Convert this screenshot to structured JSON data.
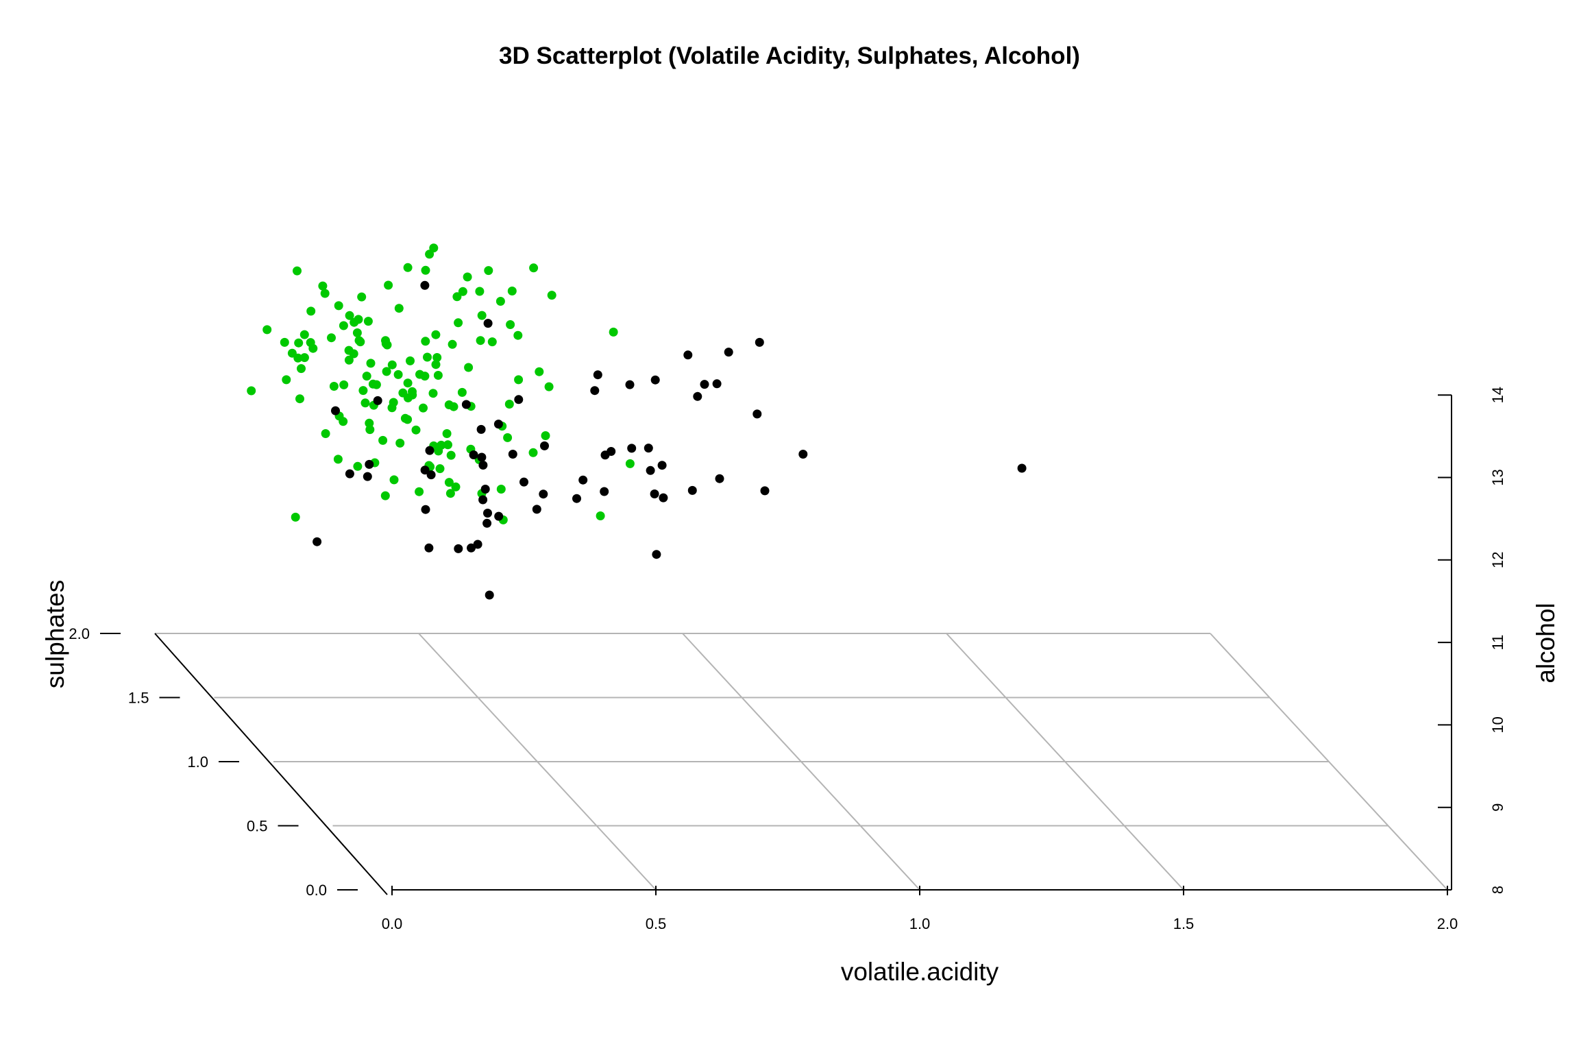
{
  "chart_data": {
    "type": "scatter",
    "title": "3D Scatterplot (Volatile Acidity, Sulphates, Alcohol)",
    "x_axis": {
      "label": "volatile.acidity",
      "range": [
        0,
        2
      ],
      "ticks": [
        "0.0",
        "0.5",
        "1.0",
        "1.5",
        "2.0"
      ]
    },
    "y_axis": {
      "label": "sulphates",
      "range": [
        0,
        2
      ],
      "ticks": [
        "0.0",
        "0.5",
        "1.0",
        "1.5",
        "2.0"
      ]
    },
    "z_axis": {
      "label": "alcohol",
      "range": [
        8,
        14
      ],
      "ticks": [
        "8",
        "9",
        "10",
        "11",
        "12",
        "13",
        "14"
      ]
    },
    "grid": true,
    "series": [
      {
        "color": "#00c800",
        "points": [
          [
            0.21,
            1.5,
            12.9
          ],
          [
            0.33,
            1.5,
            13.0
          ],
          [
            0.31,
            0.99,
            12.7
          ],
          [
            0.03,
            1.32,
            12.0
          ],
          [
            0.07,
            1.05,
            13.1
          ],
          [
            0.2,
            1.34,
            13.0
          ],
          [
            0.11,
            1.29,
            13.5
          ],
          [
            0.19,
            1.43,
            13.1
          ],
          [
            0.2,
            1.09,
            13.2
          ],
          [
            0.31,
            1.32,
            13.0
          ],
          [
            0.08,
            1.04,
            13.4
          ],
          [
            0.41,
            1.18,
            12.5
          ],
          [
            0.44,
            1.41,
            13.0
          ],
          [
            0.2,
            1.21,
            13.0
          ],
          [
            0.42,
            1.36,
            12.5
          ],
          [
            0.17,
            1.04,
            13.3
          ],
          [
            0.42,
            1.13,
            13.5
          ],
          [
            0.16,
            1.07,
            13.3
          ],
          [
            0.54,
            1.39,
            13.1
          ],
          [
            0.17,
            1.0,
            12.5
          ],
          [
            0.12,
            1.2,
            12.7
          ],
          [
            0.52,
            1.12,
            13.8
          ],
          [
            0.11,
            1.05,
            11.9
          ],
          [
            0.08,
            1.41,
            12.6
          ],
          [
            0.55,
            1.45,
            12.6
          ],
          [
            0.26,
            1.45,
            12.5
          ],
          [
            0.34,
            1.38,
            13.4
          ],
          [
            0.31,
            1.01,
            12.8
          ],
          [
            0.25,
            1.39,
            12.5
          ],
          [
            0.34,
            1.23,
            13.6
          ],
          [
            0.31,
            1.43,
            12.4
          ],
          [
            0.2,
            1.05,
            12.5
          ],
          [
            0.44,
            1.2,
            13.1
          ],
          [
            0.13,
            1.09,
            13.0
          ],
          [
            0.56,
            1.43,
            12.5
          ],
          [
            0.34,
            1.36,
            12.3
          ],
          [
            0.27,
            1.03,
            12.4
          ],
          [
            0.31,
            1.42,
            12.4
          ],
          [
            0.29,
            1.12,
            12.3
          ],
          [
            0.66,
            1.07,
            13.1
          ],
          [
            0.23,
            1.28,
            13.2
          ],
          [
            0.06,
            1.06,
            12.8
          ],
          [
            0.3,
            1.2,
            12.1
          ],
          [
            0.39,
            1.07,
            12.2
          ],
          [
            0.34,
            1.05,
            11.9
          ],
          [
            0.42,
            1.5,
            12.4
          ],
          [
            0.12,
            1.3,
            12.3
          ],
          [
            0.17,
            1.12,
            12.8
          ],
          [
            0.27,
            1.2,
            12.5
          ],
          [
            0.43,
            1.1,
            13.8
          ],
          [
            0.38,
            1.21,
            12.0
          ],
          [
            0.18,
            1.29,
            12.1
          ],
          [
            0.14,
            1.31,
            12.6
          ],
          [
            0.25,
            1.06,
            12.6
          ],
          [
            0.38,
            1.34,
            13.7
          ],
          [
            0.32,
            1.19,
            12.4
          ],
          [
            0.13,
            1.42,
            12.3
          ],
          [
            0.37,
            1.37,
            12.1
          ],
          [
            0.23,
            1.43,
            11.9
          ],
          [
            0.35,
            1.26,
            12.5
          ],
          [
            0.21,
            1.16,
            12.1
          ],
          [
            0.13,
            1.47,
            11.9
          ],
          [
            0.28,
            1.4,
            11.7
          ],
          [
            0.16,
            1.5,
            12.3
          ],
          [
            0.44,
            1.4,
            12.7
          ],
          [
            0.16,
            1.45,
            12.2
          ],
          [
            0.21,
            1.38,
            11.6
          ],
          [
            0.48,
            1.39,
            12.5
          ],
          [
            0.12,
            1.44,
            12.4
          ],
          [
            0.37,
            1.3,
            12.0
          ],
          [
            0.5,
            1.38,
            12.5
          ],
          [
            0.16,
            1.12,
            13.1
          ],
          [
            0.3,
            1.39,
            12.5
          ],
          [
            0.34,
            1.38,
            12.0
          ],
          [
            0.26,
            1.37,
            12.1
          ],
          [
            0.51,
            1.28,
            11.9
          ],
          [
            0.57,
            1.47,
            11.9
          ],
          [
            0.25,
            1.38,
            12.5
          ],
          [
            0.32,
            1.47,
            12.0
          ],
          [
            0.25,
            1.1,
            12.2
          ],
          [
            0.27,
            1.11,
            12.3
          ],
          [
            0.36,
            1.32,
            12.6
          ],
          [
            0.31,
            1.38,
            11.7
          ],
          [
            0.55,
            1.1,
            13.5
          ],
          [
            0.31,
            1.0,
            12.9
          ],
          [
            0.26,
            1.48,
            12.2
          ],
          [
            0.25,
            1.19,
            11.6
          ],
          [
            0.36,
            1.4,
            11.4
          ],
          [
            0.52,
            1.34,
            11.4
          ],
          [
            0.43,
            1.25,
            11.4
          ],
          [
            0.15,
            1.08,
            12.0
          ],
          [
            0.29,
            1.47,
            12.1
          ],
          [
            0.22,
            1.11,
            12.4
          ],
          [
            0.23,
            1.21,
            11.7
          ],
          [
            0.38,
            1.22,
            11.5
          ],
          [
            0.5,
            1.31,
            13.1
          ],
          [
            0.24,
            1.26,
            11.7
          ],
          [
            0.47,
            1.5,
            11.7
          ],
          [
            0.29,
            1.16,
            11.9
          ],
          [
            0.38,
            1.3,
            11.3
          ],
          [
            0.2,
            1.18,
            11.3
          ],
          [
            0.46,
            1.45,
            13.0
          ],
          [
            0.24,
            1.43,
            12.2
          ],
          [
            0.34,
            1.25,
            11.9
          ],
          [
            0.36,
            1.49,
            11.4
          ],
          [
            0.21,
            1.08,
            11.5
          ],
          [
            0.63,
            1.48,
            11.8
          ],
          [
            0.4,
            1.26,
            11.9
          ],
          [
            0.19,
            1.3,
            11.2
          ],
          [
            0.39,
            1.42,
            13.5
          ],
          [
            0.38,
            1.34,
            11.3
          ],
          [
            0.26,
            1.14,
            11.2
          ],
          [
            0.36,
            1.12,
            11.2
          ],
          [
            0.61,
            1.42,
            11.3
          ],
          [
            0.41,
            1.41,
            11.2
          ],
          [
            0.05,
            1.0,
            12.4
          ],
          [
            0.35,
            1.02,
            11.3
          ],
          [
            0.48,
            1.5,
            13.1
          ],
          [
            0.23,
            1.08,
            11.1
          ],
          [
            0.38,
            1.38,
            11.0
          ],
          [
            0.38,
            1.37,
            11.0
          ],
          [
            0.41,
            1.42,
            10.9
          ],
          [
            0.58,
            1.34,
            12.2
          ],
          [
            0.49,
            1.26,
            10.9
          ],
          [
            0.53,
            1.43,
            11.4
          ],
          [
            0.75,
            1.33,
            11.1
          ],
          [
            0.5,
            1.49,
            10.9
          ],
          [
            0.6,
            1.48,
            11.0
          ],
          [
            0.44,
            1.46,
            11.0
          ],
          [
            0.35,
            1.49,
            11.1
          ],
          [
            0.44,
            1.02,
            10.9
          ],
          [
            0.33,
            1.24,
            10.9
          ],
          [
            0.46,
            1.29,
            10.8
          ],
          [
            0.66,
            1.18,
            10.7
          ],
          [
            0.43,
            1.42,
            10.6
          ],
          [
            0.08,
            1.17,
            10.7
          ]
        ]
      },
      {
        "color": "#000000",
        "points": [
          [
            0.37,
            1.37,
            13.2
          ],
          [
            0.79,
            1.02,
            12.9
          ],
          [
            0.31,
            1.5,
            11.6
          ],
          [
            0.51,
            1.46,
            12.6
          ],
          [
            0.71,
            1.45,
            11.8
          ],
          [
            0.35,
            1.24,
            11.4
          ],
          [
            0.47,
            1.34,
            11.5
          ],
          [
            0.55,
            1.38,
            11.8
          ],
          [
            0.7,
            1.11,
            12.4
          ],
          [
            1.02,
            1.44,
            12.4
          ],
          [
            0.8,
            1.34,
            12.1
          ],
          [
            0.7,
            1.38,
            12.1
          ],
          [
            0.9,
            1.37,
            12.0
          ],
          [
            0.93,
            1.3,
            12.5
          ],
          [
            0.91,
            1.31,
            12.1
          ],
          [
            0.88,
            1.34,
            11.9
          ],
          [
            0.74,
            1.13,
            11.6
          ],
          [
            1.02,
            1.46,
            11.5
          ],
          [
            1.08,
            1.34,
            11.2
          ],
          [
            1.47,
            1.23,
            11.2
          ],
          [
            0.37,
            1.02,
            12.3
          ],
          [
            0.44,
            1.06,
            12.0
          ],
          [
            0.75,
            1.06,
            11.5
          ],
          [
            0.14,
            1.1,
            12.1
          ],
          [
            0.48,
            1.38,
            11.1
          ],
          [
            0.53,
            1.34,
            11.2
          ],
          [
            0.23,
            1.23,
            11.1
          ],
          [
            0.31,
            1.05,
            11.4
          ],
          [
            0.85,
            1.02,
            11.4
          ],
          [
            0.66,
            1.14,
            11.5
          ],
          [
            0.59,
            1.34,
            11.3
          ],
          [
            0.78,
            1.45,
            11.1
          ],
          [
            0.75,
            1.49,
            11.0
          ],
          [
            0.44,
            1.27,
            11.3
          ],
          [
            0.44,
            1.19,
            11.3
          ],
          [
            0.56,
            1.38,
            10.8
          ],
          [
            0.69,
            1.46,
            10.7
          ],
          [
            0.71,
            1.37,
            10.7
          ],
          [
            0.24,
            1.26,
            11.2
          ],
          [
            0.66,
            1.38,
            10.6
          ],
          [
            0.82,
            1.47,
            10.8
          ],
          [
            0.48,
            1.37,
            10.6
          ],
          [
            0.58,
            1.36,
            10.5
          ],
          [
            0.85,
            1.25,
            10.9
          ],
          [
            0.83,
            1.48,
            10.5
          ],
          [
            1.03,
            1.44,
            10.6
          ],
          [
            0.84,
            1.45,
            10.5
          ],
          [
            0.35,
            1.28,
            11.1
          ],
          [
            0.46,
            1.26,
            10.9
          ],
          [
            0.59,
            1.35,
            10.7
          ],
          [
            0.15,
            1.3,
            10.2
          ],
          [
            0.48,
            1.33,
            10.5
          ],
          [
            0.49,
            1.38,
            10.3
          ],
          [
            0.51,
            1.37,
            10.4
          ],
          [
            0.38,
            1.38,
            10.0
          ],
          [
            0.45,
            1.28,
            10.2
          ],
          [
            0.42,
            1.31,
            10.1
          ],
          [
            0.46,
            1.38,
            10.0
          ],
          [
            0.8,
            1.33,
            10.0
          ],
          [
            0.47,
            1.27,
            9.6
          ],
          [
            0.34,
            1.23,
            10.7
          ],
          [
            0.23,
            1.38,
            10.9
          ]
        ]
      }
    ]
  }
}
